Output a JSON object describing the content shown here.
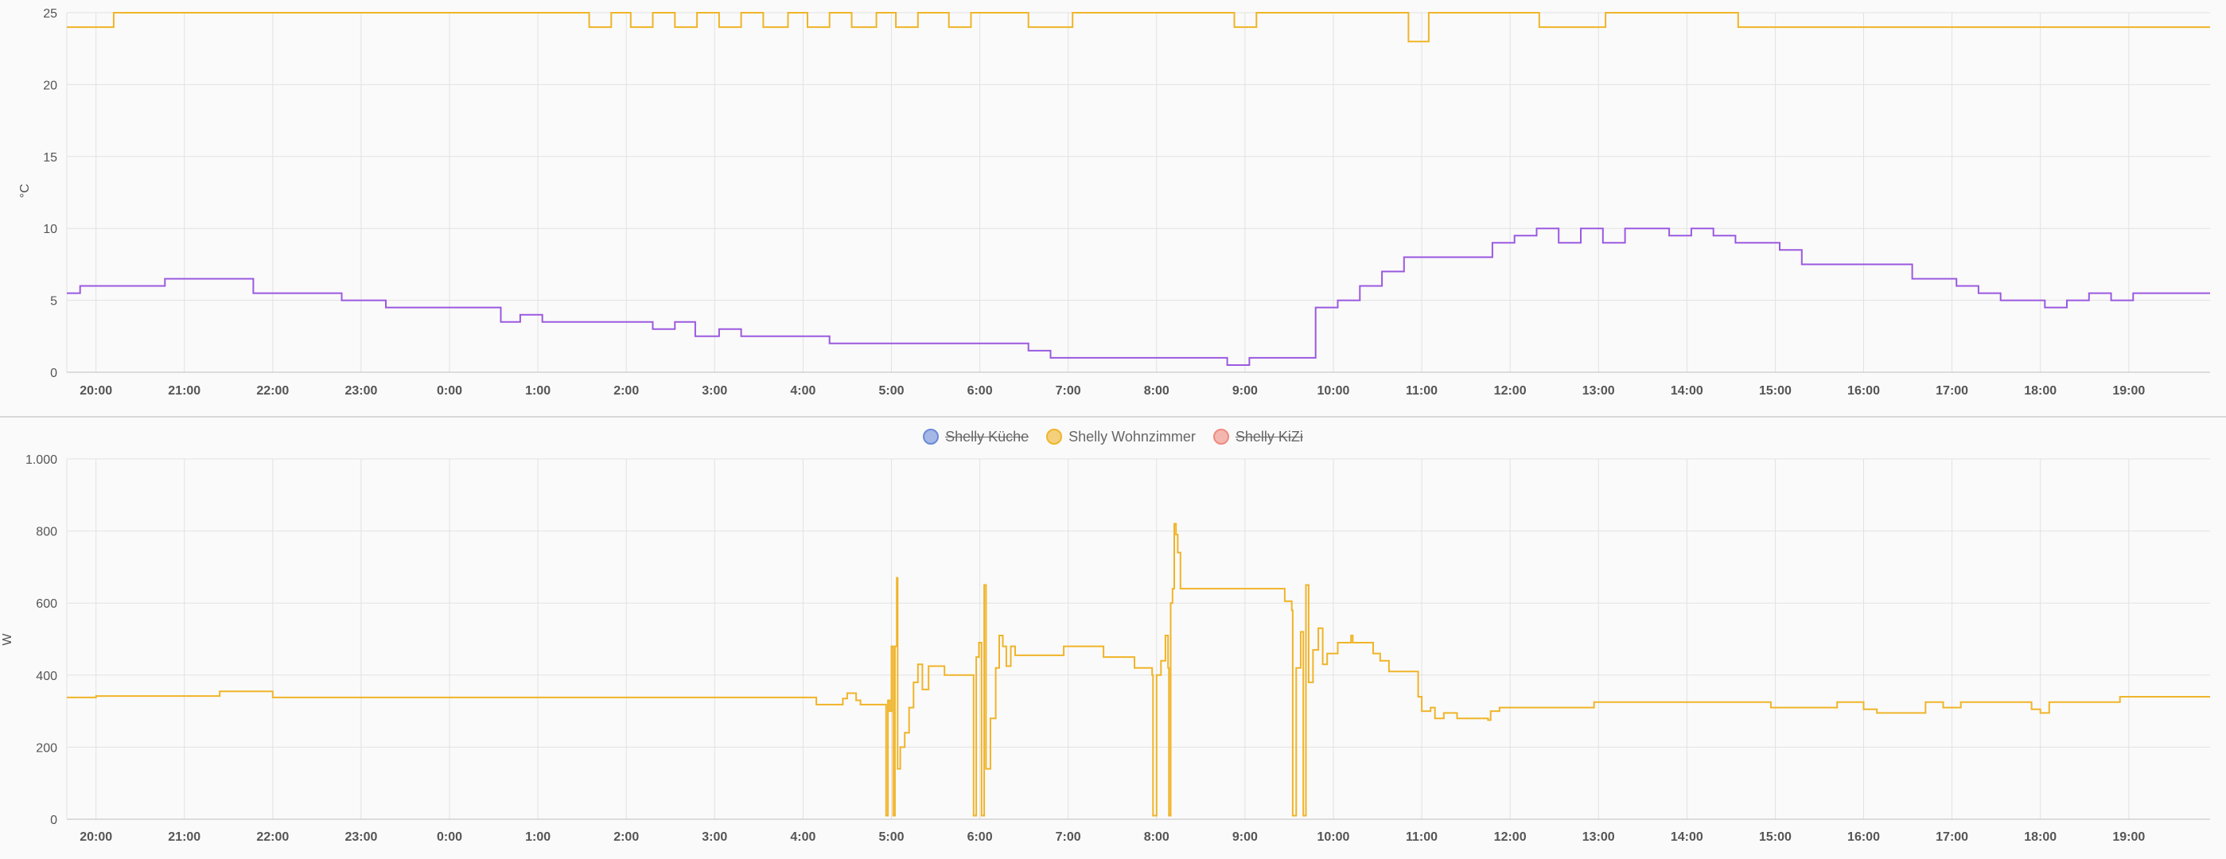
{
  "chart_data": [
    {
      "type": "line",
      "step": true,
      "ylabel": "°C",
      "ylim": [
        0,
        25
      ],
      "yticks": [
        0,
        5,
        10,
        15,
        20,
        25
      ],
      "xticks": [
        "20:00",
        "21:00",
        "22:00",
        "23:00",
        "0:00",
        "1:00",
        "2:00",
        "3:00",
        "4:00",
        "5:00",
        "6:00",
        "7:00",
        "8:00",
        "9:00",
        "10:00",
        "11:00",
        "12:00",
        "13:00",
        "14:00",
        "15:00",
        "16:00",
        "17:00",
        "18:00",
        "19:00"
      ],
      "x_hours_range": [
        19.67,
        43.92
      ],
      "grid": true,
      "series": [
        {
          "color": "#f0b429",
          "points": [
            [
              19.67,
              24
            ],
            [
              20.2,
              25
            ],
            [
              25.58,
              24
            ],
            [
              25.83,
              25
            ],
            [
              26.05,
              24
            ],
            [
              26.3,
              25
            ],
            [
              26.55,
              24
            ],
            [
              26.8,
              25
            ],
            [
              27.05,
              24
            ],
            [
              27.3,
              25
            ],
            [
              27.55,
              24
            ],
            [
              27.83,
              25
            ],
            [
              28.05,
              24
            ],
            [
              28.3,
              25
            ],
            [
              28.55,
              24
            ],
            [
              28.83,
              25
            ],
            [
              29.05,
              24
            ],
            [
              29.3,
              25
            ],
            [
              29.65,
              24
            ],
            [
              29.9,
              25
            ],
            [
              30.55,
              24
            ],
            [
              31.05,
              25
            ],
            [
              32.88,
              24
            ],
            [
              33.13,
              25
            ],
            [
              34.85,
              23
            ],
            [
              35.08,
              25
            ],
            [
              36.33,
              24
            ],
            [
              37.08,
              25
            ],
            [
              38.58,
              24
            ],
            [
              43.92,
              24
            ]
          ]
        },
        {
          "color": "#9b59e0",
          "points": [
            [
              19.67,
              5.5
            ],
            [
              19.82,
              6
            ],
            [
              20.78,
              6.5
            ],
            [
              21.78,
              5.5
            ],
            [
              22.78,
              5
            ],
            [
              23.28,
              4.5
            ],
            [
              24.58,
              3.5
            ],
            [
              24.8,
              4
            ],
            [
              25.05,
              3.5
            ],
            [
              26.3,
              3
            ],
            [
              26.55,
              3.5
            ],
            [
              26.78,
              2.5
            ],
            [
              27.05,
              3
            ],
            [
              27.3,
              2.5
            ],
            [
              28.3,
              2
            ],
            [
              30.55,
              1.5
            ],
            [
              30.8,
              1
            ],
            [
              32.8,
              0.5
            ],
            [
              33.05,
              1
            ],
            [
              33.8,
              4.5
            ],
            [
              34.05,
              5
            ],
            [
              34.3,
              6
            ],
            [
              34.55,
              7
            ],
            [
              34.8,
              8
            ],
            [
              35.8,
              9
            ],
            [
              36.05,
              9.5
            ],
            [
              36.3,
              10
            ],
            [
              36.55,
              9
            ],
            [
              36.8,
              10
            ],
            [
              37.05,
              9
            ],
            [
              37.3,
              10
            ],
            [
              37.8,
              9.5
            ],
            [
              38.05,
              10
            ],
            [
              38.3,
              9.5
            ],
            [
              38.55,
              9
            ],
            [
              39.05,
              8.5
            ],
            [
              39.3,
              7.5
            ],
            [
              40.55,
              6.5
            ],
            [
              41.05,
              6
            ],
            [
              41.3,
              5.5
            ],
            [
              41.55,
              5
            ],
            [
              42.05,
              4.5
            ],
            [
              42.3,
              5
            ],
            [
              42.55,
              5.5
            ],
            [
              42.8,
              5
            ],
            [
              43.05,
              5.5
            ],
            [
              43.92,
              5.5
            ]
          ]
        }
      ]
    },
    {
      "type": "line",
      "step": true,
      "ylabel": "W",
      "ylim": [
        0,
        1000
      ],
      "yticks": [
        0,
        200,
        400,
        600,
        800,
        1000
      ],
      "ytick_labels": [
        "0",
        "200",
        "400",
        "600",
        "800",
        "1.000"
      ],
      "xticks": [
        "20:00",
        "21:00",
        "22:00",
        "23:00",
        "0:00",
        "1:00",
        "2:00",
        "3:00",
        "4:00",
        "5:00",
        "6:00",
        "7:00",
        "8:00",
        "9:00",
        "10:00",
        "11:00",
        "12:00",
        "13:00",
        "14:00",
        "15:00",
        "16:00",
        "17:00",
        "18:00",
        "19:00"
      ],
      "x_hours_range": [
        19.67,
        43.92
      ],
      "grid": true,
      "legend_position": "top-center",
      "series": [
        {
          "name": "Shelly Küche",
          "color": "#6a8ad8",
          "hidden": true,
          "points": []
        },
        {
          "name": "Shelly Wohnzimmer",
          "color": "#f0b429",
          "hidden": false,
          "points": [
            [
              19.67,
              338
            ],
            [
              20,
              342
            ],
            [
              21.4,
              355
            ],
            [
              22,
              338
            ],
            [
              28.13,
              338
            ],
            [
              28.15,
              318
            ],
            [
              28.45,
              335
            ],
            [
              28.5,
              350
            ],
            [
              28.6,
              330
            ],
            [
              28.65,
              318
            ],
            [
              28.93,
              318
            ],
            [
              28.94,
              10
            ],
            [
              28.96,
              330
            ],
            [
              28.98,
              300
            ],
            [
              29,
              480
            ],
            [
              29.02,
              10
            ],
            [
              29.04,
              480
            ],
            [
              29.06,
              670
            ],
            [
              29.07,
              140
            ],
            [
              29.1,
              200
            ],
            [
              29.15,
              240
            ],
            [
              29.2,
              310
            ],
            [
              29.25,
              380
            ],
            [
              29.3,
              430
            ],
            [
              29.35,
              360
            ],
            [
              29.42,
              425
            ],
            [
              29.6,
              400
            ],
            [
              29.92,
              400
            ],
            [
              29.93,
              10
            ],
            [
              29.96,
              450
            ],
            [
              29.99,
              490
            ],
            [
              30.02,
              10
            ],
            [
              30.05,
              650
            ],
            [
              30.07,
              140
            ],
            [
              30.12,
              280
            ],
            [
              30.18,
              420
            ],
            [
              30.22,
              510
            ],
            [
              30.26,
              480
            ],
            [
              30.3,
              425
            ],
            [
              30.35,
              480
            ],
            [
              30.4,
              455
            ],
            [
              30.95,
              480
            ],
            [
              31.4,
              450
            ],
            [
              31.75,
              420
            ],
            [
              31.95,
              400
            ],
            [
              31.96,
              10
            ],
            [
              32.0,
              400
            ],
            [
              32.05,
              440
            ],
            [
              32.1,
              510
            ],
            [
              32.13,
              420
            ],
            [
              32.14,
              10
            ],
            [
              32.16,
              600
            ],
            [
              32.18,
              640
            ],
            [
              32.2,
              820
            ],
            [
              32.22,
              790
            ],
            [
              32.24,
              740
            ],
            [
              32.27,
              640
            ],
            [
              33.4,
              640
            ],
            [
              33.45,
              605
            ],
            [
              33.53,
              580
            ],
            [
              33.54,
              10
            ],
            [
              33.58,
              420
            ],
            [
              33.63,
              520
            ],
            [
              33.66,
              10
            ],
            [
              33.69,
              650
            ],
            [
              33.72,
              380
            ],
            [
              33.77,
              470
            ],
            [
              33.83,
              530
            ],
            [
              33.88,
              430
            ],
            [
              33.93,
              460
            ],
            [
              34.05,
              490
            ],
            [
              34.2,
              510
            ],
            [
              34.22,
              490
            ],
            [
              34.45,
              460
            ],
            [
              34.53,
              440
            ],
            [
              34.63,
              410
            ],
            [
              34.92,
              410
            ],
            [
              34.96,
              340
            ],
            [
              35.0,
              300
            ],
            [
              35.1,
              310
            ],
            [
              35.15,
              280
            ],
            [
              35.25,
              295
            ],
            [
              35.4,
              280
            ],
            [
              35.75,
              275
            ],
            [
              35.78,
              300
            ],
            [
              35.88,
              310
            ],
            [
              36.95,
              325
            ],
            [
              38.95,
              310
            ],
            [
              39.7,
              325
            ],
            [
              40.0,
              305
            ],
            [
              40.15,
              295
            ],
            [
              40.7,
              325
            ],
            [
              40.9,
              310
            ],
            [
              41.1,
              325
            ],
            [
              41.9,
              305
            ],
            [
              42.0,
              295
            ],
            [
              42.1,
              325
            ],
            [
              42.9,
              340
            ],
            [
              43.92,
              340
            ]
          ]
        },
        {
          "name": "Shelly KiZi",
          "color": "#f08a7e",
          "hidden": true,
          "points": []
        }
      ]
    }
  ]
}
